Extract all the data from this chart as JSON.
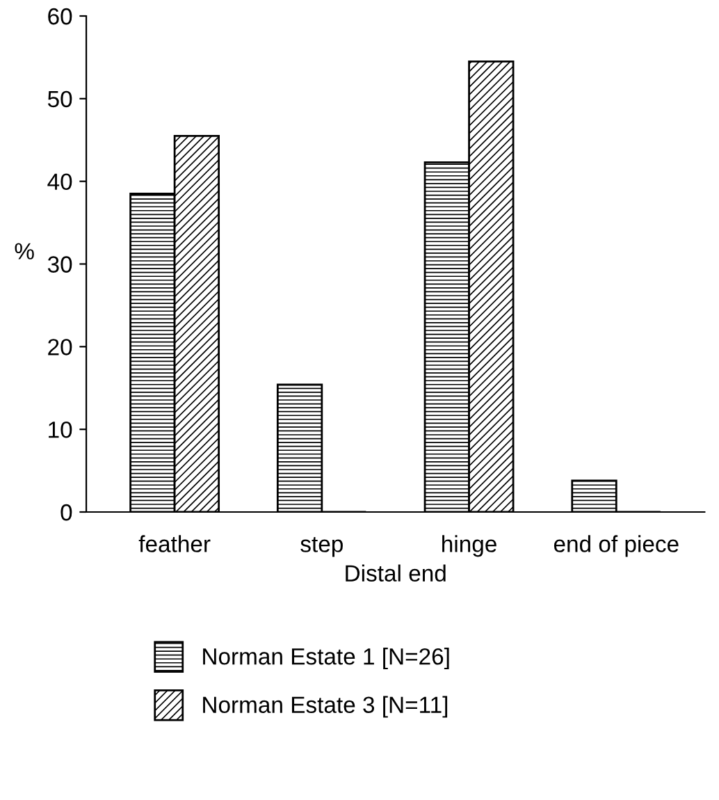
{
  "chart_data": {
    "type": "bar",
    "xlabel": "Distal end",
    "ylabel": "%",
    "categories": [
      "feather",
      "step",
      "hinge",
      "end of piece"
    ],
    "series": [
      {
        "name": "Norman Estate 1 [N=26]",
        "color": "#000000",
        "values": [
          38.5,
          15.4,
          42.3,
          3.8
        ]
      },
      {
        "name": "Norman Estate 3 [N=11]",
        "color": "#000000",
        "values": [
          45.5,
          0,
          54.5,
          0
        ]
      }
    ],
    "ylim": [
      0,
      60
    ],
    "yticks": [
      0,
      10,
      20,
      30,
      40,
      50,
      60
    ],
    "grid": false,
    "legend": "bottom"
  }
}
